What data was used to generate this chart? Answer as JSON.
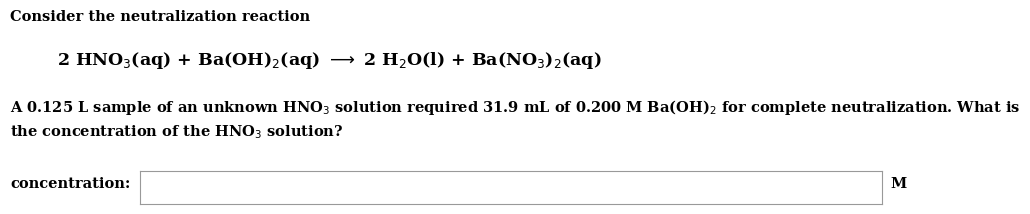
{
  "background_color": "#ffffff",
  "title_line": "Consider the neutralization reaction",
  "equation": "2 HNO$_{3}$(aq) + Ba(OH)$_{2}$(aq) $\\longrightarrow$ 2 H$_{2}$O(l) + Ba(NO$_{3}$)$_{2}$(aq)",
  "para_line1": "A 0.125 L sample of an unknown HNO$_{3}$ solution required 31.9 mL of 0.200 M Ba(OH)$_{2}$ for complete neutralization. What is",
  "para_line2": "the concentration of the HNO$_{3}$ solution?",
  "label_text": "concentration:",
  "unit_text": "M",
  "font_size_title": 10.5,
  "font_size_eq": 12.5,
  "font_size_para": 10.5,
  "font_size_label": 10.5,
  "text_color": "#000000",
  "box_edge_color": "#999999",
  "box_fill_color": "#ffffff"
}
